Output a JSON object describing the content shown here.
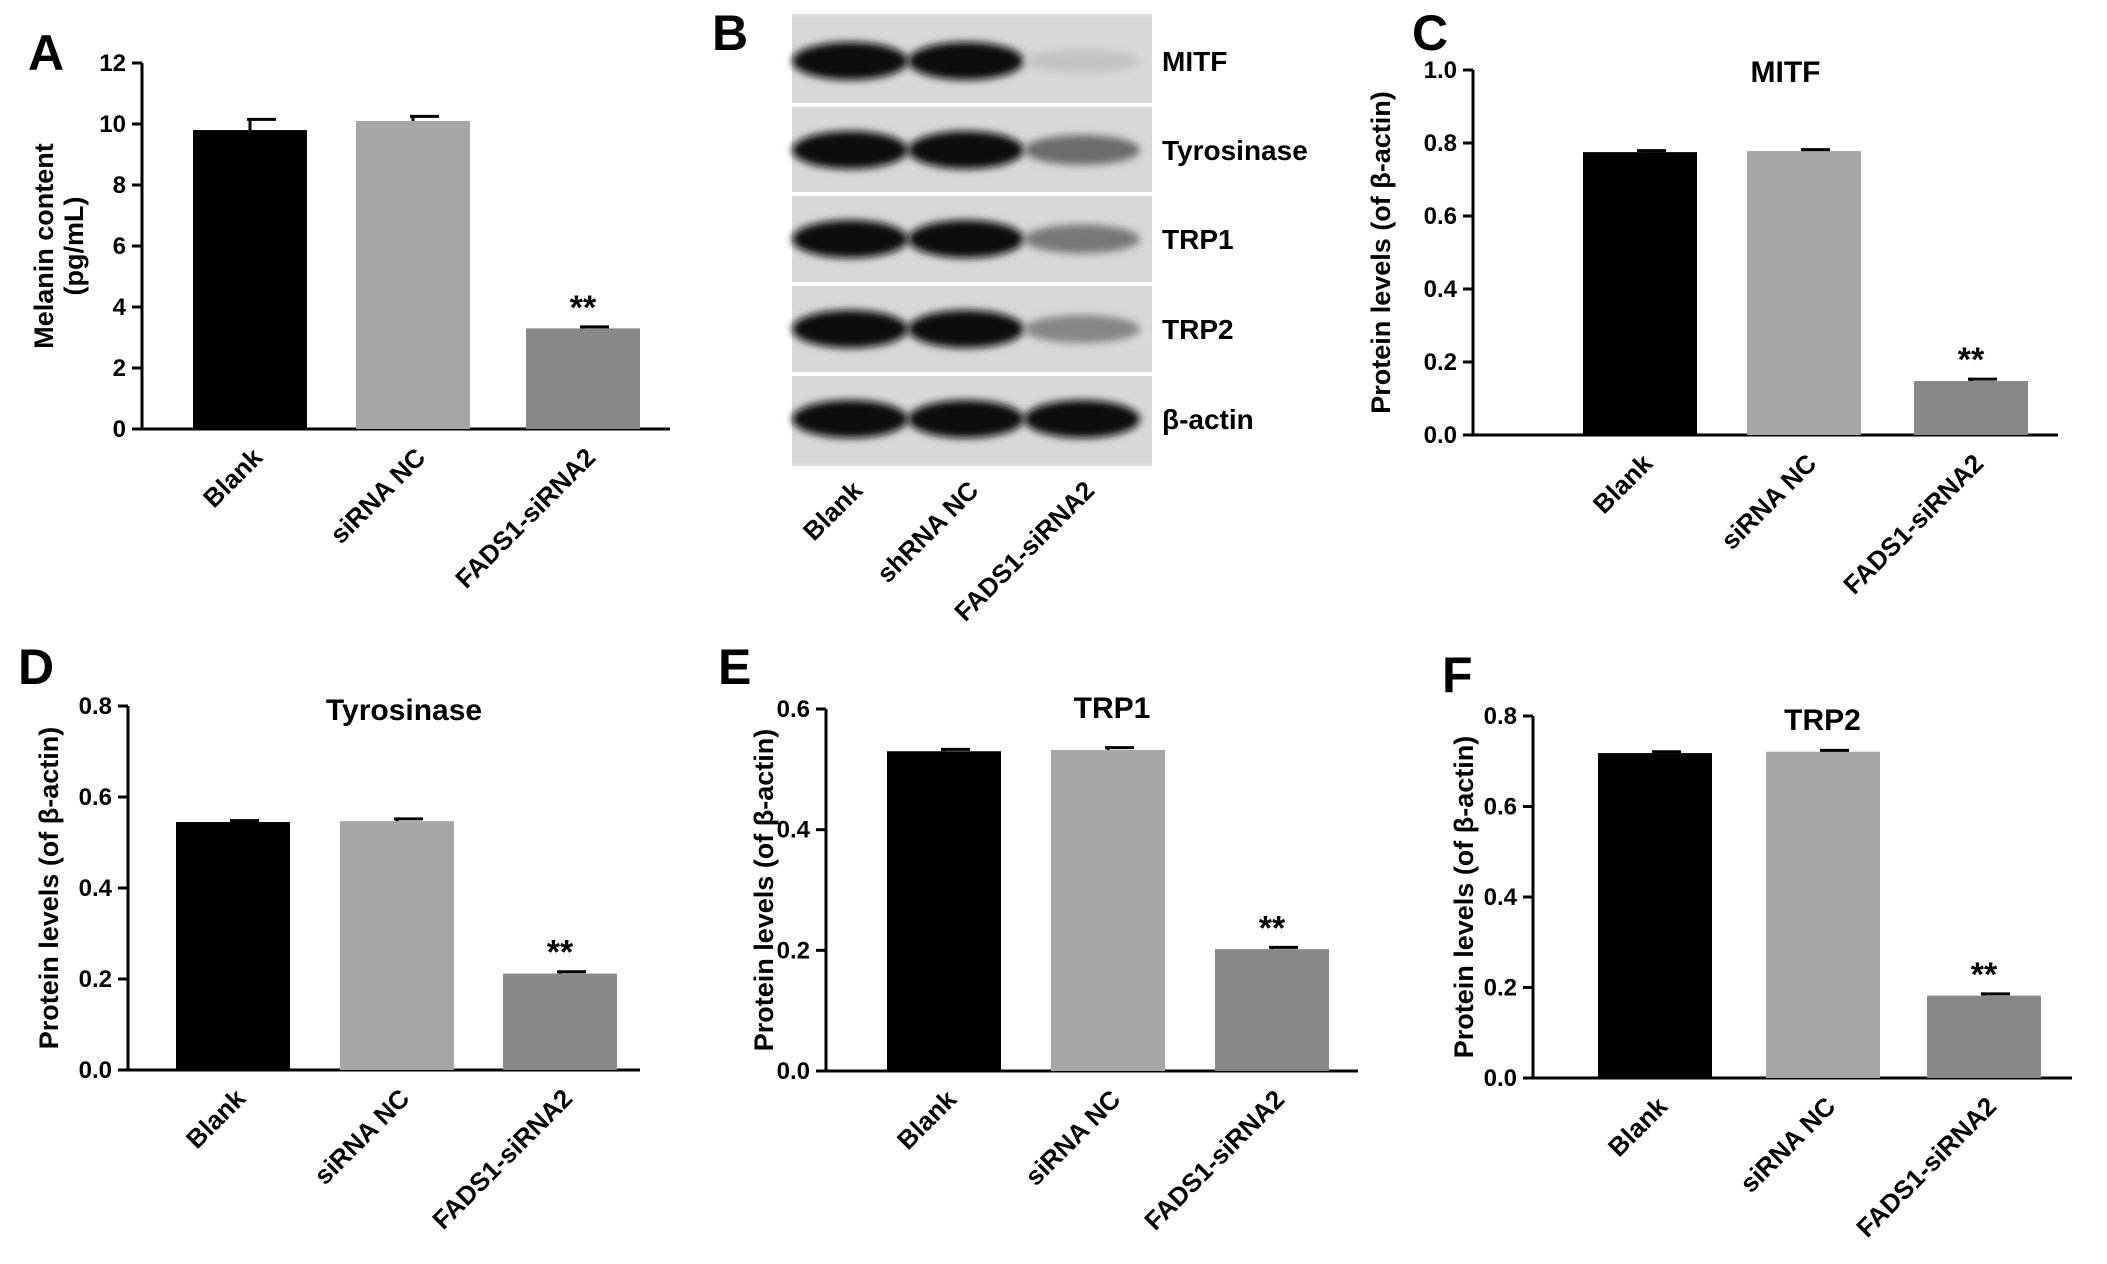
{
  "panels": {
    "A": "A",
    "B": "B",
    "C": "C",
    "D": "D",
    "E": "E",
    "F": "F"
  },
  "chart_data": [
    {
      "panel": "A",
      "type": "bar",
      "title": "",
      "ylabel": "Melanin content\n(pg/mL)",
      "categories": [
        "Blank",
        "siRNA NC",
        "FADS1-siRNA2"
      ],
      "values": [
        9.8,
        10.1,
        3.3
      ],
      "errors": [
        0.35,
        0.15,
        0.05
      ],
      "significance": [
        "",
        "",
        "**"
      ],
      "colors": [
        "#000000",
        "#a6a6a6",
        "#888888"
      ],
      "ylim": [
        0,
        12
      ],
      "yticks": [
        "0",
        "2",
        "4",
        "6",
        "8",
        "10",
        "12"
      ]
    },
    {
      "panel": "C",
      "type": "bar",
      "title": "MITF",
      "ylabel": "Protein levels (of β-actin)",
      "categories": [
        "Blank",
        "siRNA NC",
        "FADS1-siRNA2"
      ],
      "values": [
        0.775,
        0.778,
        0.148
      ],
      "errors": [
        0.004,
        0.004,
        0.005
      ],
      "significance": [
        "",
        "",
        "**"
      ],
      "colors": [
        "#000000",
        "#a6a6a6",
        "#888888"
      ],
      "ylim": [
        0,
        1.0
      ],
      "yticks": [
        "0.0",
        "0.2",
        "0.4",
        "0.6",
        "0.8",
        "1.0"
      ]
    },
    {
      "panel": "D",
      "type": "bar",
      "title": "Tyrosinase",
      "ylabel": "Protein levels (of β-actin)",
      "categories": [
        "Blank",
        "siRNA NC",
        "FADS1-siRNA2"
      ],
      "values": [
        0.545,
        0.547,
        0.212
      ],
      "errors": [
        0.003,
        0.005,
        0.004
      ],
      "significance": [
        "",
        "",
        "**"
      ],
      "colors": [
        "#000000",
        "#a6a6a6",
        "#888888"
      ],
      "ylim": [
        0,
        0.8
      ],
      "yticks": [
        "0.0",
        "0.2",
        "0.4",
        "0.6",
        "0.8"
      ]
    },
    {
      "panel": "E",
      "type": "bar",
      "title": "TRP1",
      "ylabel": "Protein levels (of β-actin)",
      "categories": [
        "Blank",
        "siRNA NC",
        "FADS1-siRNA2"
      ],
      "values": [
        0.53,
        0.532,
        0.202
      ],
      "errors": [
        0.003,
        0.004,
        0.003
      ],
      "significance": [
        "",
        "",
        "**"
      ],
      "colors": [
        "#000000",
        "#a6a6a6",
        "#888888"
      ],
      "ylim": [
        0,
        0.6
      ],
      "yticks": [
        "0.0",
        "0.2",
        "0.4",
        "0.6"
      ]
    },
    {
      "panel": "F",
      "type": "bar",
      "title": "TRP2",
      "ylabel": "Protein levels (of β-actin)",
      "categories": [
        "Blank",
        "siRNA NC",
        "FADS1-siRNA2"
      ],
      "values": [
        0.718,
        0.721,
        0.182
      ],
      "errors": [
        0.003,
        0.003,
        0.004
      ],
      "significance": [
        "",
        "",
        "**"
      ],
      "colors": [
        "#000000",
        "#a6a6a6",
        "#888888"
      ],
      "ylim": [
        0,
        0.8
      ],
      "yticks": [
        "0.0",
        "0.2",
        "0.4",
        "0.6",
        "0.8"
      ]
    }
  ],
  "blot": {
    "panel": "B",
    "bands": [
      "MITF",
      "Tyrosinase",
      "TRP1",
      "TRP2",
      "β-actin"
    ],
    "lanes": [
      "Blank",
      "shRNA NC",
      "FADS1-siRNA2"
    ],
    "intensities": [
      [
        1.0,
        1.0,
        0.25
      ],
      [
        1.0,
        1.0,
        0.6
      ],
      [
        1.0,
        1.0,
        0.55
      ],
      [
        1.0,
        1.0,
        0.5
      ],
      [
        1.0,
        1.0,
        1.0
      ]
    ]
  }
}
